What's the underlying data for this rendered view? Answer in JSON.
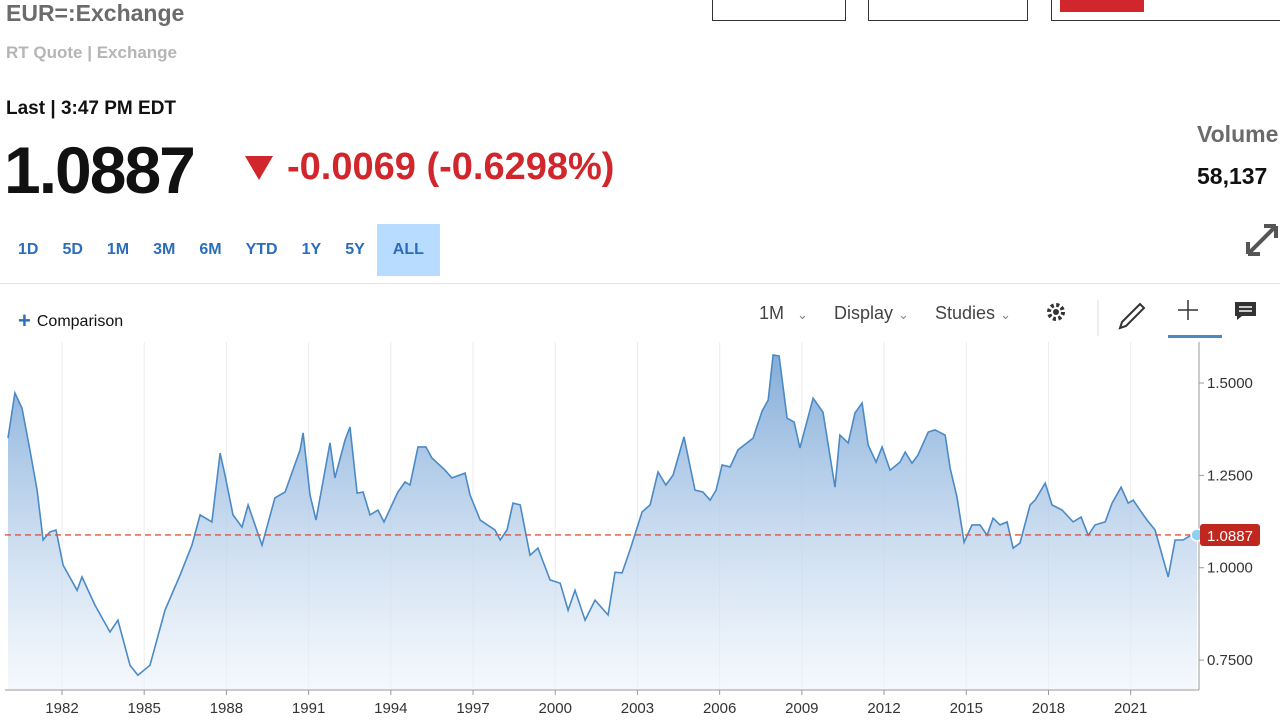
{
  "header": {
    "title": "EUR=:Exchange",
    "subtitle": "RT Quote | Exchange",
    "last_time": "Last | 3:47 PM EDT",
    "price": "1.0887",
    "change": "-0.0069 (-0.6298%)",
    "volume_label": "Volume",
    "volume": "58,137",
    "ranges": [
      "1D",
      "5D",
      "1M",
      "3M",
      "6M",
      "YTD",
      "1Y",
      "5Y",
      "ALL"
    ]
  },
  "toolbar": {
    "comparison": "Comparison",
    "interval": "1M",
    "display": "Display",
    "studies": "Studies"
  },
  "chart_data": {
    "type": "area",
    "line_color": "#4a8ac6",
    "reference_color": "#e0533f",
    "last_value": 1.0887,
    "x": [
      1980.03,
      1980.28,
      1980.54,
      1980.83,
      1981.09,
      1981.31,
      1981.56,
      1981.78,
      1982.04,
      1982.55,
      1982.73,
      1983.2,
      1983.75,
      1984.04,
      1984.48,
      1984.77,
      1985.21,
      1985.76,
      1986.31,
      1986.74,
      1987.04,
      1987.47,
      1987.77,
      1987.95,
      1988.24,
      1988.57,
      1988.79,
      1989.3,
      1989.77,
      1990.14,
      1990.69,
      1990.8,
      1991.05,
      1991.27,
      1991.78,
      1991.96,
      1992.33,
      1992.51,
      1992.77,
      1992.99,
      1993.24,
      1993.53,
      1993.75,
      1994.26,
      1994.52,
      1994.7,
      1994.99,
      1995.28,
      1995.5,
      1995.98,
      1996.23,
      1996.71,
      1996.89,
      1997.26,
      1997.8,
      1997.99,
      1998.24,
      1998.46,
      1998.72,
      1999.08,
      1999.37,
      1999.81,
      2000.18,
      2000.47,
      2000.72,
      2001.09,
      2001.45,
      2001.93,
      2002.18,
      2002.44,
      2002.73,
      2003.17,
      2003.46,
      2003.75,
      2004.04,
      2004.3,
      2004.7,
      2005.1,
      2005.39,
      2005.65,
      2005.87,
      2006.09,
      2006.38,
      2006.67,
      2007.22,
      2007.55,
      2007.77,
      2007.95,
      2008.17,
      2008.46,
      2008.72,
      2008.93,
      2009.41,
      2009.77,
      2010.21,
      2010.39,
      2010.69,
      2010.94,
      2011.2,
      2011.42,
      2011.71,
      2011.93,
      2012.22,
      2012.58,
      2012.77,
      2013.02,
      2013.24,
      2013.61,
      2013.86,
      2014.23,
      2014.41,
      2014.66,
      2014.92,
      2015.21,
      2015.5,
      2015.76,
      2015.98,
      2016.23,
      2016.49,
      2016.71,
      2016.96,
      2017.33,
      2017.51,
      2017.88,
      2018.13,
      2018.5,
      2018.9,
      2019.19,
      2019.45,
      2019.7,
      2020.07,
      2020.32,
      2020.65,
      2020.91,
      2021.09,
      2021.34,
      2021.6,
      2021.89,
      2022.37,
      2022.62,
      2022.91,
      2023.2,
      2023.42
    ],
    "values": [
      1.351,
      1.473,
      1.432,
      1.319,
      1.21,
      1.075,
      1.097,
      1.102,
      1.007,
      0.939,
      0.975,
      0.899,
      0.826,
      0.858,
      0.736,
      0.709,
      0.736,
      0.885,
      0.98,
      1.061,
      1.143,
      1.124,
      1.31,
      1.251,
      1.143,
      1.11,
      1.17,
      1.061,
      1.189,
      1.205,
      1.319,
      1.365,
      1.197,
      1.129,
      1.338,
      1.243,
      1.346,
      1.381,
      1.202,
      1.205,
      1.143,
      1.156,
      1.124,
      1.205,
      1.232,
      1.224,
      1.327,
      1.327,
      1.297,
      1.264,
      1.243,
      1.256,
      1.197,
      1.129,
      1.102,
      1.075,
      1.102,
      1.175,
      1.17,
      1.034,
      1.053,
      0.967,
      0.958,
      0.885,
      0.939,
      0.858,
      0.912,
      0.872,
      0.988,
      0.986,
      1.048,
      1.151,
      1.17,
      1.259,
      1.224,
      1.251,
      1.354,
      1.21,
      1.205,
      1.183,
      1.21,
      1.278,
      1.273,
      1.319,
      1.351,
      1.424,
      1.454,
      1.576,
      1.573,
      1.405,
      1.394,
      1.324,
      1.459,
      1.421,
      1.218,
      1.359,
      1.338,
      1.419,
      1.446,
      1.332,
      1.286,
      1.327,
      1.264,
      1.286,
      1.313,
      1.283,
      1.305,
      1.367,
      1.373,
      1.359,
      1.27,
      1.191,
      1.069,
      1.116,
      1.116,
      1.088,
      1.134,
      1.116,
      1.124,
      1.053,
      1.067,
      1.17,
      1.183,
      1.229,
      1.17,
      1.156,
      1.124,
      1.137,
      1.088,
      1.116,
      1.124,
      1.175,
      1.218,
      1.175,
      1.183,
      1.156,
      1.129,
      1.102,
      0.975,
      1.075,
      1.075,
      1.088,
      1.0887
    ],
    "xlim": [
      1979.92,
      2023.42
    ],
    "ylim": [
      0.669,
      1.611
    ],
    "xticks": [
      1982,
      1985,
      1988,
      1991,
      1994,
      1997,
      2000,
      2003,
      2006,
      2009,
      2012,
      2015,
      2018,
      2021
    ],
    "yticks": [
      {
        "value": 0.75,
        "label": "0.7500"
      },
      {
        "value": 1.0,
        "label": "1.0000"
      },
      {
        "value": 1.25,
        "label": "1.2500"
      },
      {
        "value": 1.5,
        "label": "1.5000"
      }
    ],
    "grid": true
  }
}
